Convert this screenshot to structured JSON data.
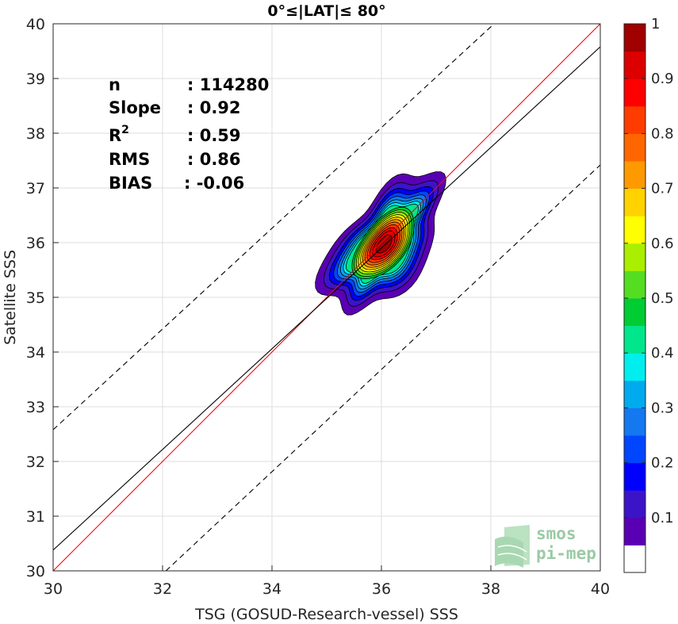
{
  "chart_data": {
    "type": "contour",
    "title": "0°≤|LAT|≤ 80°",
    "xlabel": "TSG (GOSUD-Research-vessel) SSS",
    "ylabel": "Satellite SSS",
    "xlim": [
      30,
      40
    ],
    "ylim": [
      30,
      40
    ],
    "xticks": [
      "30",
      "32",
      "34",
      "36",
      "38",
      "40"
    ],
    "yticks": [
      "30",
      "31",
      "32",
      "33",
      "34",
      "35",
      "36",
      "37",
      "38",
      "39",
      "40"
    ],
    "grid": true,
    "stats": [
      {
        "label": "n",
        "value": ": 114280"
      },
      {
        "label": "Slope",
        "value": ": 0.92"
      },
      {
        "label": "R",
        "sup": "2",
        "value": ": 0.59"
      },
      {
        "label": "RMS",
        "value": ": 0.86"
      },
      {
        "label": "BIAS",
        "value": ": -0.06"
      }
    ],
    "lines": [
      {
        "name": "identity",
        "points": [
          [
            30,
            30
          ],
          [
            40,
            40
          ]
        ],
        "color": "#ff0000",
        "style": "solid"
      },
      {
        "name": "regression",
        "points": [
          [
            30,
            30.38
          ],
          [
            40,
            39.58
          ]
        ],
        "color": "#000000",
        "style": "solid"
      },
      {
        "name": "upper-bound",
        "points": [
          [
            30,
            32.58
          ],
          [
            38.06,
            40
          ]
        ],
        "color": "#000000",
        "style": "dashed"
      },
      {
        "name": "lower-bound",
        "points": [
          [
            32.06,
            30
          ],
          [
            40,
            37.42
          ]
        ],
        "color": "#000000",
        "style": "dashed"
      }
    ],
    "density_peak": {
      "x": 36.05,
      "y": 35.97
    },
    "contour_levels": [
      0.05,
      0.1,
      0.15,
      0.2,
      0.25,
      0.3,
      0.35,
      0.4,
      0.45,
      0.5,
      0.55,
      0.6,
      0.65,
      0.7,
      0.75,
      0.8,
      0.85,
      0.9,
      0.95
    ],
    "colorbar": {
      "ticks": [
        "0.1",
        "0.2",
        "0.3",
        "0.4",
        "0.5",
        "0.6",
        "0.7",
        "0.8",
        "0.9",
        "1"
      ],
      "colors": [
        "#ffffff",
        "#5a00b4",
        "#3c14c8",
        "#0000ff",
        "#0046ff",
        "#1478f0",
        "#00aaee",
        "#00eeee",
        "#00e68c",
        "#00cc33",
        "#55dd22",
        "#aaee00",
        "#ffff00",
        "#ffd200",
        "#ff9900",
        "#ff6600",
        "#ff3c00",
        "#ff0000",
        "#dc0000",
        "#a00000"
      ]
    }
  },
  "watermark": {
    "line1": "smos",
    "line2": "pi-mep"
  }
}
